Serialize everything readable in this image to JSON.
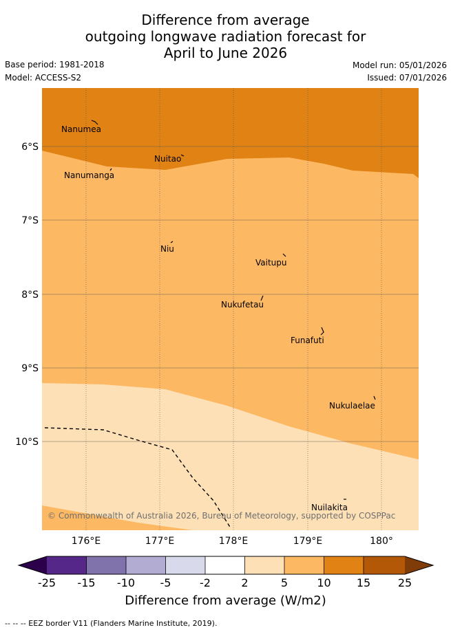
{
  "title": {
    "line1": "Difference from average",
    "line2": "outgoing longwave radiation forecast for",
    "line3": "April to June 2026"
  },
  "meta": {
    "base_period": "Base period: 1981-2018",
    "model": "Model: ACCESS-S2",
    "model_run": "Model run: 05/01/2026",
    "issued": "Issued: 07/01/2026"
  },
  "map": {
    "lat_labels": [
      "6°S",
      "7°S",
      "8°S",
      "9°S",
      "10°S"
    ],
    "lon_labels": [
      "176°E",
      "177°E",
      "178°E",
      "179°E",
      "180°"
    ],
    "places": [
      "Nanumea",
      "Nuitao",
      "Nanumanga",
      "Niu",
      "Vaitupu",
      "Nukufetau",
      "Funafuti",
      "Nukulaelae",
      "Nuilakita"
    ],
    "copyright": "© Commonwealth of Australia 2026, Bureau of Meteorology, supported by COSPPac",
    "colors": {
      "band_10_15": "#e08214",
      "band_5_10": "#fdb863",
      "band_2_5": "#fee0b6"
    }
  },
  "colorbar": {
    "ticks": [
      "-25",
      "-15",
      "-10",
      "-5",
      "-2",
      "2",
      "5",
      "10",
      "15",
      "25"
    ],
    "colors": [
      "#2d004b",
      "#542788",
      "#8073ac",
      "#b2abd2",
      "#d8daeb",
      "#ffffff",
      "#fee0b6",
      "#fdb863",
      "#e08214",
      "#b35806",
      "#7f3b08"
    ],
    "title": "Difference from average (W/m2)"
  },
  "legend_note": "--  --  -- EEZ border V11 (Flanders Marine Institute, 2019)."
}
